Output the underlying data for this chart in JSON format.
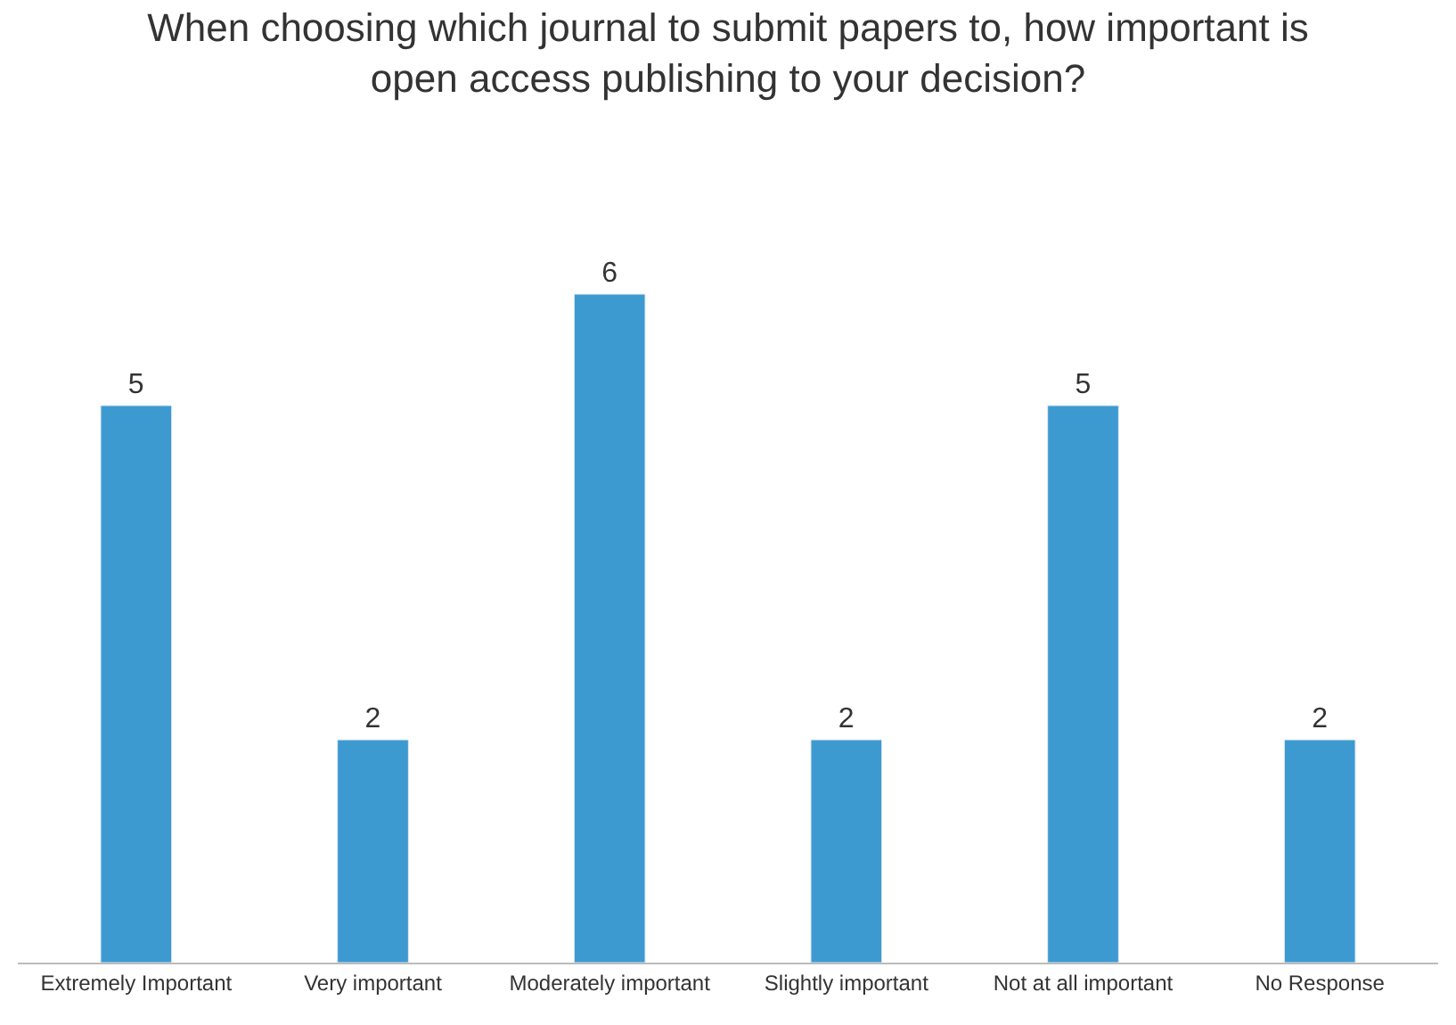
{
  "chart_data": {
    "type": "bar",
    "title": "When choosing which journal to submit papers to, how important is\nopen access publishing to your decision?",
    "categories": [
      "Extremely Important",
      "Very important",
      "Moderately important",
      "Slightly important",
      "Not at all important",
      "No Response"
    ],
    "values": [
      5,
      2,
      6,
      2,
      5,
      2
    ],
    "color": "#3d9ad1",
    "data_labels": true
  }
}
